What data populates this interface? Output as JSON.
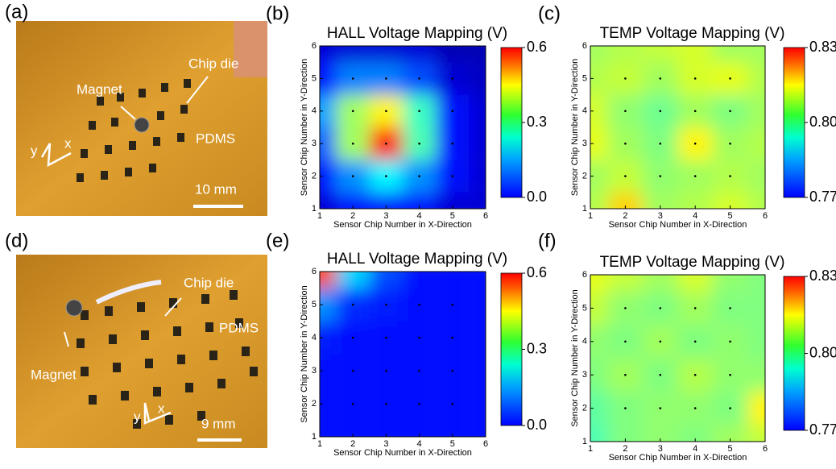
{
  "photos": [
    {
      "label": "(a)",
      "magnet": "Magnet",
      "chip": "Chip die",
      "pdms": "PDMS",
      "scale": "10 mm",
      "x": "x",
      "y": "y"
    },
    {
      "label": "(d)",
      "magnet": "Magnet",
      "chip": "Chip die",
      "pdms": "PDMS",
      "scale": "9 mm",
      "x": "x",
      "y": "y"
    }
  ],
  "maps": [
    {
      "label": "(b)",
      "title": "HALL Voltage Mapping (V)",
      "x_label": "Sensor Chip Number in X-Direction",
      "y_label": "Sensor Chip Number in Y-Direction",
      "xlim": [
        1,
        6
      ],
      "ylim": [
        1,
        6
      ],
      "xticks": [
        1,
        2,
        3,
        4,
        5,
        6
      ],
      "yticks": [
        1,
        2,
        3,
        4,
        5,
        6
      ],
      "clim": [
        0,
        0.6
      ],
      "cticks": [
        {
          "value": 0,
          "label": "0.0"
        },
        {
          "value": 0.3,
          "label": "0.3"
        },
        {
          "value": 0.6,
          "label": "0.6"
        }
      ],
      "values": [
        [
          0.05,
          0.08,
          0.08,
          0.08,
          0.05,
          0.05
        ],
        [
          0.08,
          0.16,
          0.22,
          0.16,
          0.08,
          0.05
        ],
        [
          0.13,
          0.32,
          0.52,
          0.27,
          0.08,
          0.05
        ],
        [
          0.17,
          0.32,
          0.38,
          0.26,
          0.08,
          0.05
        ],
        [
          0.08,
          0.15,
          0.15,
          0.12,
          0.05,
          0.04
        ],
        [
          0.05,
          0.05,
          0.05,
          0.05,
          0.03,
          0.03
        ]
      ]
    },
    {
      "label": "(c)",
      "title": "TEMP Voltage Mapping (V)",
      "x_label": "Sensor Chip Number in X-Direction",
      "y_label": "Sensor Chip Number in Y-Direction",
      "xlim": [
        1,
        6
      ],
      "ylim": [
        1,
        6
      ],
      "xticks": [
        1,
        2,
        3,
        4,
        5,
        6
      ],
      "yticks": [
        1,
        2,
        3,
        4,
        5,
        6
      ],
      "clim": [
        0.77,
        0.83
      ],
      "cticks": [
        0.77,
        {
          "value": 0.8,
          "label": "0.80"
        },
        0.83
      ],
      "values": [
        [
          0.803,
          0.81,
          0.802,
          0.803,
          0.805,
          0.803
        ],
        [
          0.802,
          0.804,
          0.801,
          0.802,
          0.803,
          0.802
        ],
        [
          0.806,
          0.802,
          0.8,
          0.808,
          0.802,
          0.803
        ],
        [
          0.805,
          0.801,
          0.799,
          0.802,
          0.8,
          0.802
        ],
        [
          0.803,
          0.804,
          0.802,
          0.805,
          0.806,
          0.803
        ],
        [
          0.802,
          0.803,
          0.804,
          0.805,
          0.802,
          0.802
        ]
      ]
    },
    {
      "label": "(e)",
      "title": "HALL Voltage Mapping (V)",
      "x_label": "Sensor Chip Number in X-Direction",
      "y_label": "Sensor Chip Number in Y-Direction",
      "xlim": [
        1,
        6
      ],
      "ylim": [
        1,
        6
      ],
      "xticks": [
        1,
        2,
        3,
        4,
        5,
        6
      ],
      "yticks": [
        1,
        2,
        3,
        4,
        5,
        6
      ],
      "clim": [
        0,
        0.6
      ],
      "cticks": [
        {
          "value": 0,
          "label": "0.0"
        },
        {
          "value": 0.3,
          "label": "0.3"
        },
        {
          "value": 0.6,
          "label": "0.6"
        }
      ],
      "values": [
        [
          0.08,
          0.08,
          0.08,
          0.08,
          0.08,
          0.08
        ],
        [
          0.08,
          0.08,
          0.08,
          0.08,
          0.08,
          0.08
        ],
        [
          0.08,
          0.08,
          0.08,
          0.08,
          0.08,
          0.08
        ],
        [
          0.09,
          0.08,
          0.08,
          0.08,
          0.08,
          0.08
        ],
        [
          0.16,
          0.1,
          0.09,
          0.08,
          0.08,
          0.08
        ],
        [
          0.48,
          0.2,
          0.12,
          0.08,
          0.08,
          0.08
        ]
      ]
    },
    {
      "label": "(f)",
      "title": "TEMP Voltage Mapping (V)",
      "x_label": "Sensor Chip Number in X-Direction",
      "y_label": "Sensor Chip Number in Y-Direction",
      "xlim": [
        1,
        6
      ],
      "ylim": [
        1,
        6
      ],
      "xticks": [
        1,
        2,
        3,
        4,
        5,
        6
      ],
      "yticks": [
        1,
        2,
        3,
        4,
        5,
        6
      ],
      "clim": [
        0.77,
        0.83
      ],
      "cticks": [
        0.77,
        {
          "value": 0.8,
          "label": "0.80"
        },
        0.83
      ],
      "values": [
        [
          0.797,
          0.8,
          0.801,
          0.8,
          0.802,
          0.804
        ],
        [
          0.798,
          0.8,
          0.801,
          0.801,
          0.8,
          0.808
        ],
        [
          0.8,
          0.802,
          0.8,
          0.803,
          0.801,
          0.801
        ],
        [
          0.801,
          0.8,
          0.802,
          0.8,
          0.801,
          0.8
        ],
        [
          0.804,
          0.801,
          0.8,
          0.802,
          0.8,
          0.8
        ],
        [
          0.806,
          0.804,
          0.802,
          0.805,
          0.801,
          0.8
        ]
      ]
    }
  ]
}
